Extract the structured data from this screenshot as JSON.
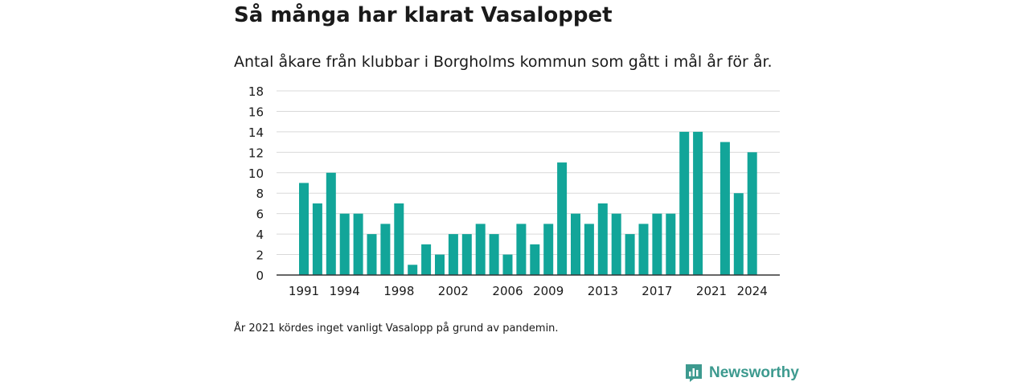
{
  "title": "Så många har klarat Vasaloppet",
  "subtitle": "Antal åkare från klubbar i Borgholms kommun som gått i mål år för år.",
  "note": "År 2021 kördes inget vanligt Vasalopp på grund av pandemin.",
  "brand": {
    "name": "Newsworthy",
    "icon": "newsworthy-logo-icon",
    "color": "#3d9a8f"
  },
  "colors": {
    "bar": "#12a599",
    "grid": "#d9d9d9",
    "axis": "#333333"
  },
  "chart_data": {
    "type": "bar",
    "title": "Så många har klarat Vasaloppet",
    "subtitle": "Antal åkare från klubbar i Borgholms kommun som gått i mål år för år.",
    "xlabel": "",
    "ylabel": "",
    "ylim": [
      0,
      18
    ],
    "yticks": [
      0,
      2,
      4,
      6,
      8,
      10,
      12,
      14,
      16,
      18
    ],
    "xtick_labels": [
      "1991",
      "1994",
      "1998",
      "2002",
      "2006",
      "2009",
      "2013",
      "2017",
      "2021",
      "2024"
    ],
    "grid": true,
    "legend": "none",
    "categories": [
      "1991",
      "1992",
      "1993",
      "1994",
      "1995",
      "1996",
      "1997",
      "1998",
      "1999",
      "2000",
      "2001",
      "2002",
      "2003",
      "2004",
      "2005",
      "2006",
      "2007",
      "2008",
      "2009",
      "2010",
      "2011",
      "2012",
      "2013",
      "2014",
      "2015",
      "2016",
      "2017",
      "2018",
      "2019",
      "2020",
      "2021",
      "2022",
      "2023",
      "2024"
    ],
    "values": [
      9,
      7,
      10,
      6,
      6,
      4,
      5,
      7,
      1,
      3,
      2,
      4,
      4,
      5,
      4,
      2,
      5,
      3,
      5,
      11,
      6,
      5,
      7,
      6,
      4,
      5,
      6,
      6,
      14,
      14,
      null,
      13,
      8,
      12
    ]
  }
}
